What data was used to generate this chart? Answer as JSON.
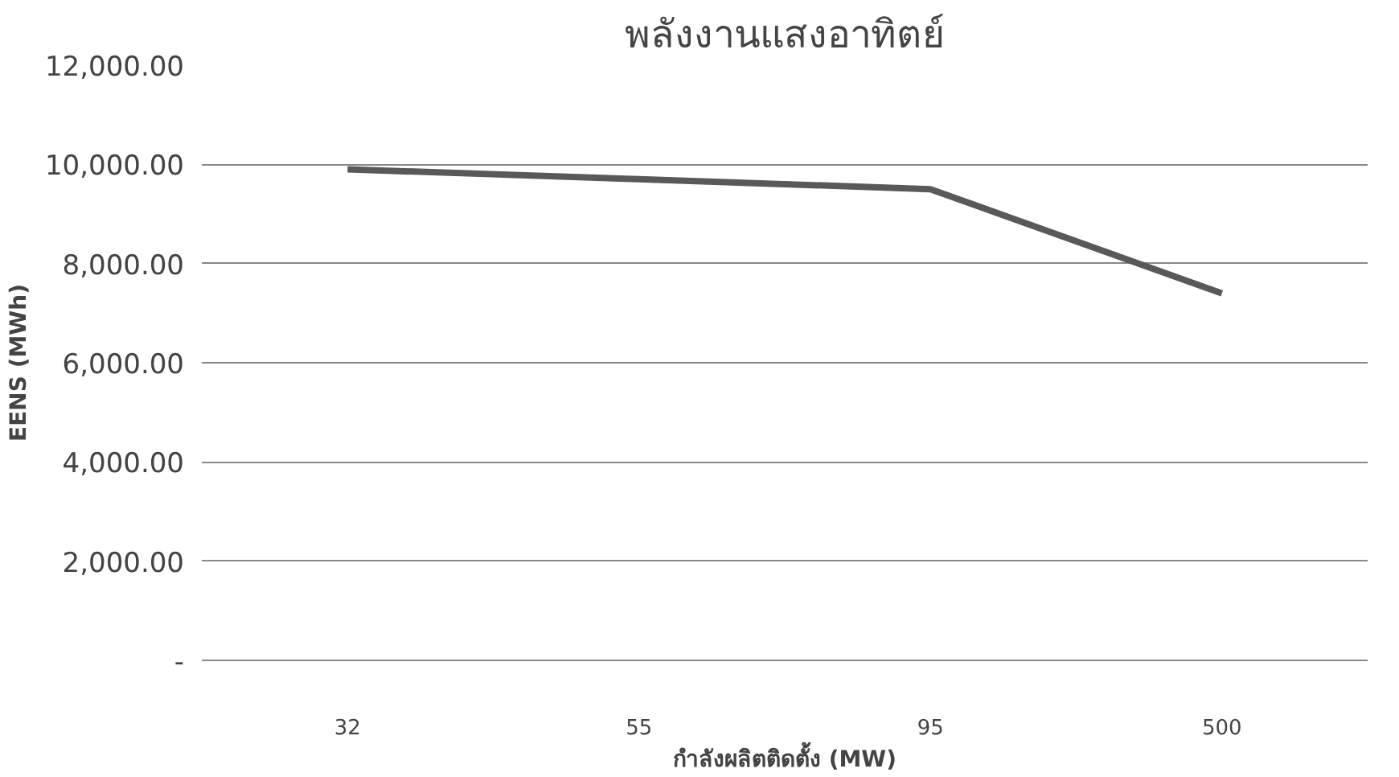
{
  "chart_data": {
    "type": "line",
    "title": "พลังงานแสงอาทิตย์",
    "xlabel": "กำลังผลิตติดตั้ง (MW)",
    "ylabel": "EENS (MWh)",
    "categories": [
      "32",
      "55",
      "95",
      "500"
    ],
    "series": [
      {
        "color": "#595959",
        "values": [
          9900,
          9700,
          9500,
          7400
        ]
      }
    ],
    "ylim": [
      0,
      12000
    ],
    "yticks": [
      {
        "value": 0,
        "label": "-"
      },
      {
        "value": 2000,
        "label": "2,000.00"
      },
      {
        "value": 4000,
        "label": "4,000.00"
      },
      {
        "value": 6000,
        "label": "6,000.00"
      },
      {
        "value": 8000,
        "label": "8,000.00"
      },
      {
        "value": 10000,
        "label": "10,000.00"
      },
      {
        "value": 12000,
        "label": "12,000.00"
      }
    ],
    "grid": "y",
    "marker": "none",
    "line_style": "solid"
  }
}
